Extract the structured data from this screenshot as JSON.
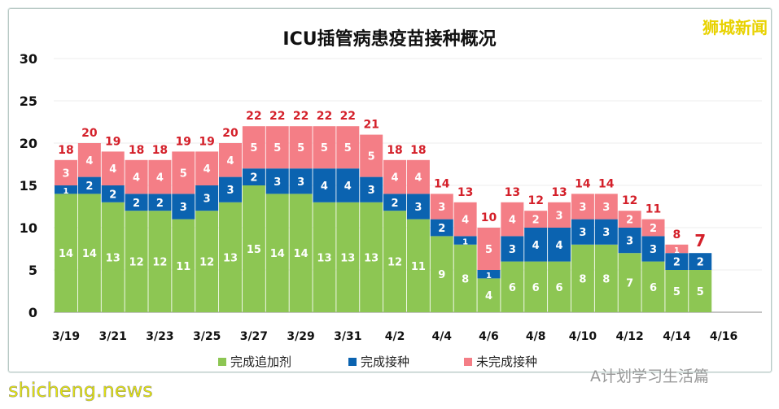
{
  "brand": "狮城新闻",
  "watermark": "shicheng.news",
  "account": "A计划学习生活篇",
  "chart_data": {
    "type": "bar",
    "stacked": true,
    "title": "ICU插管病患疫苗接种概况",
    "ylim": [
      0,
      30
    ],
    "yticks": [
      0,
      5,
      10,
      15,
      20,
      25,
      30
    ],
    "grid": true,
    "xticklabels": [
      "3/19",
      "3/21",
      "3/23",
      "3/25",
      "3/27",
      "3/29",
      "3/31",
      "4/2",
      "4/4",
      "4/6",
      "4/8",
      "4/10",
      "4/12",
      "4/14",
      "4/16"
    ],
    "categories": [
      "3/19",
      "3/20",
      "3/21",
      "3/22",
      "3/23",
      "3/24",
      "3/25",
      "3/26",
      "3/27",
      "3/28",
      "3/29",
      "3/30",
      "3/31",
      "4/1",
      "4/2",
      "4/3",
      "4/4",
      "4/5",
      "4/6",
      "4/7",
      "4/8",
      "4/9",
      "4/10",
      "4/11",
      "4/12",
      "4/13",
      "4/14",
      "4/15"
    ],
    "legend_position": "bottom",
    "series": [
      {
        "name": "完成追加剂",
        "color": "#8dc653",
        "values": [
          14,
          14,
          13,
          12,
          12,
          11,
          12,
          13,
          15,
          14,
          14,
          13,
          13,
          13,
          12,
          11,
          9,
          8,
          4,
          6,
          6,
          6,
          8,
          8,
          7,
          6,
          5,
          5
        ]
      },
      {
        "name": "完成接种",
        "color": "#0b63b0",
        "values": [
          1,
          2,
          2,
          2,
          2,
          3,
          3,
          3,
          2,
          3,
          3,
          4,
          4,
          3,
          2,
          3,
          2,
          1,
          1,
          3,
          4,
          4,
          3,
          3,
          3,
          3,
          2,
          2
        ]
      },
      {
        "name": "未完成接种",
        "color": "#f47e86",
        "values": [
          3,
          4,
          4,
          4,
          4,
          5,
          4,
          4,
          5,
          5,
          5,
          5,
          5,
          5,
          4,
          4,
          3,
          4,
          5,
          4,
          2,
          3,
          3,
          3,
          2,
          2,
          1,
          0
        ]
      }
    ],
    "totals": [
      18,
      20,
      19,
      18,
      18,
      19,
      19,
      20,
      22,
      22,
      22,
      22,
      22,
      21,
      18,
      18,
      14,
      13,
      10,
      13,
      12,
      13,
      14,
      14,
      12,
      11,
      8,
      7
    ],
    "total_color": "#d4202a"
  }
}
